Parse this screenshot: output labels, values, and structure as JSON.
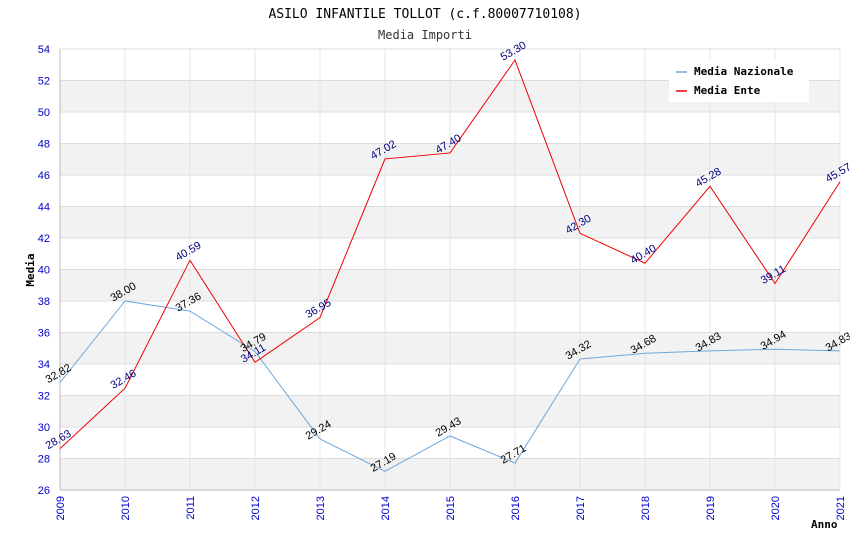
{
  "chart_data": {
    "type": "line",
    "title": "ASILO INFANTILE TOLLOT (c.f.80007710108)",
    "subtitle": "Media Importi",
    "xlabel": "Anno",
    "ylabel": "Media",
    "ylim": [
      26,
      54
    ],
    "ystep": 2,
    "y_tick_labels": [
      "26",
      "28",
      "30",
      "32",
      "34",
      "36",
      "38",
      "40",
      "42",
      "44",
      "46",
      "48",
      "50",
      "52",
      "54"
    ],
    "categories": [
      "2009",
      "2010",
      "2011",
      "2012",
      "2013",
      "2014",
      "2015",
      "2016",
      "2017",
      "2018",
      "2019",
      "2020",
      "2021"
    ],
    "legend_position": "top-right",
    "series": [
      {
        "name": "Media Nazionale",
        "color": "#6fa8dc",
        "label_color": "#000000",
        "values": [
          32.82,
          38.0,
          37.36,
          34.79,
          29.24,
          27.19,
          29.43,
          27.71,
          34.32,
          34.68,
          34.83,
          34.94,
          34.83
        ],
        "labels": [
          "32.82",
          "38.00",
          "37.36",
          "34.79",
          "29.24",
          "27.19",
          "29.43",
          "27.71",
          "34.32",
          "34.68",
          "34.83",
          "34.94",
          "34.83"
        ]
      },
      {
        "name": "Media Ente",
        "color": "#ee0000",
        "label_color": "#000080",
        "values": [
          28.63,
          32.46,
          40.59,
          34.11,
          36.95,
          47.02,
          47.4,
          53.3,
          42.3,
          40.4,
          45.28,
          39.11,
          45.57
        ],
        "labels": [
          "28.63",
          "32.46",
          "40.59",
          "34.11",
          "36.95",
          "47.02",
          "47.40",
          "53.30",
          "42.30",
          "40.40",
          "45.28",
          "39.11",
          "45.57"
        ]
      }
    ]
  }
}
